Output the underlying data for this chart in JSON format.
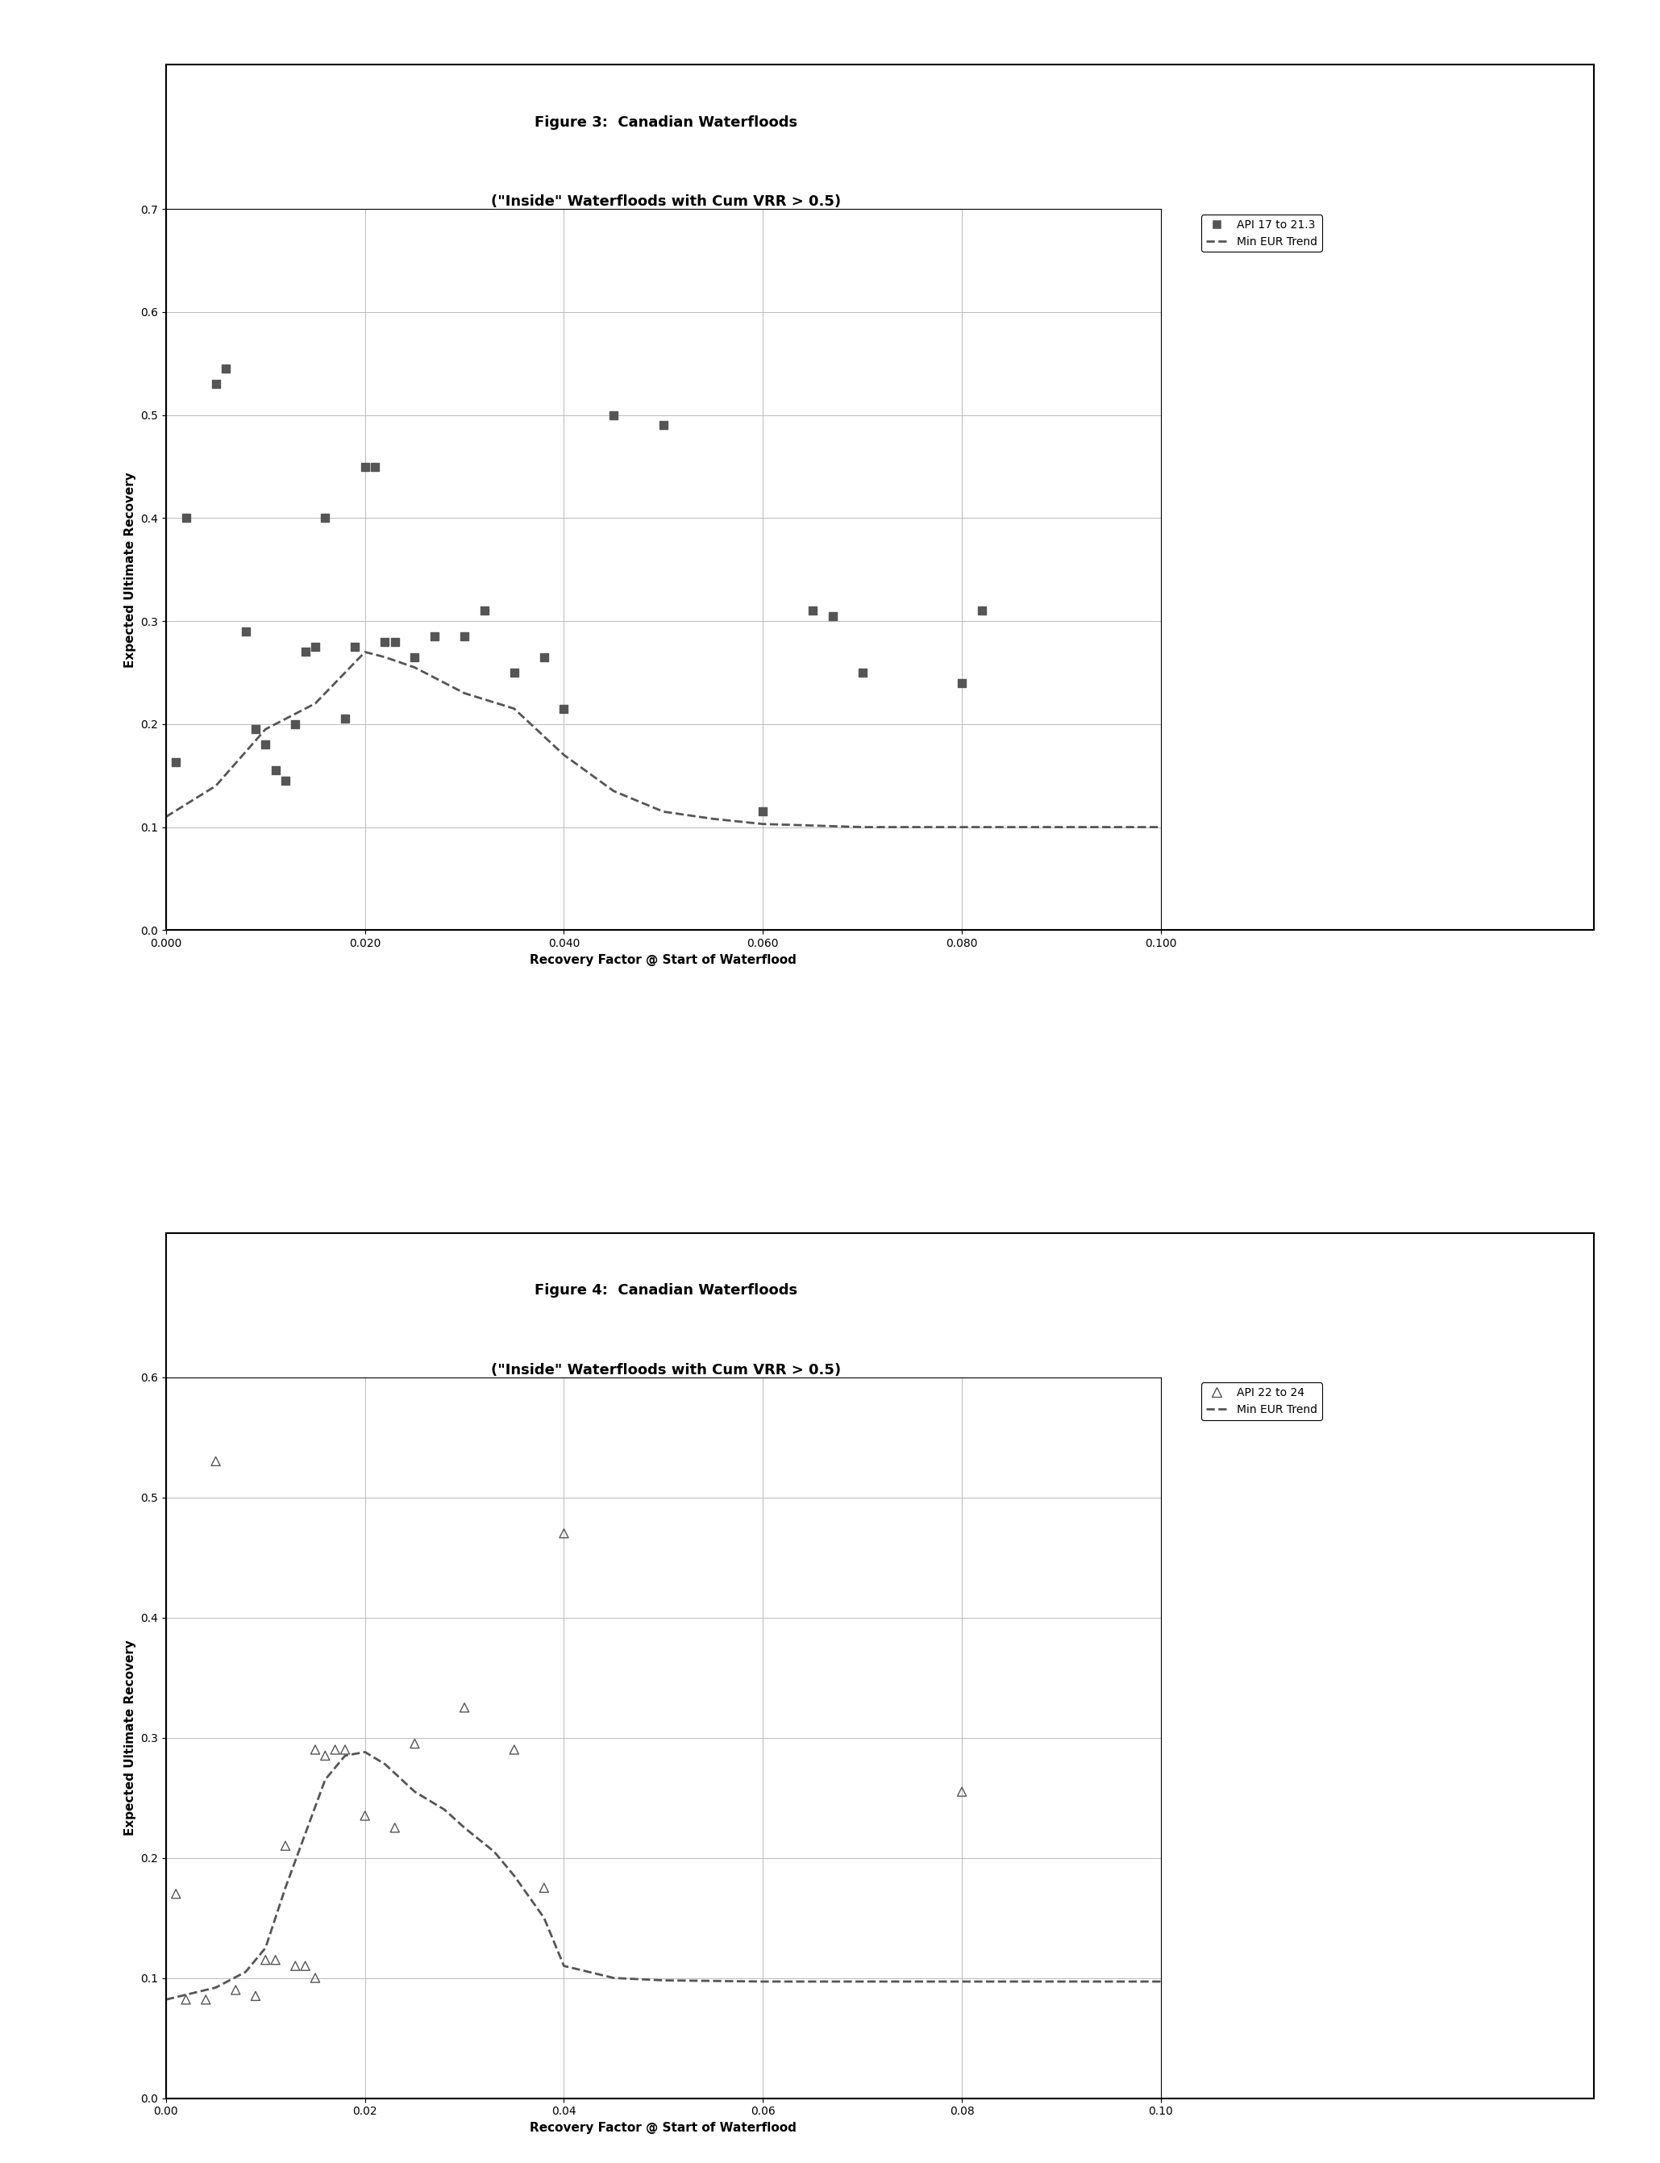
{
  "fig3": {
    "title_line1": "Figure 3:  Canadian Waterfloods",
    "title_line2": "(\"Inside\" Waterfloods with Cum VRR > 0.5)",
    "xlabel": "Recovery Factor @ Start of Waterflood",
    "ylabel": "Expected Ultimate Recovery",
    "xlim": [
      0.0,
      0.1
    ],
    "ylim": [
      0.0,
      0.7
    ],
    "xticks": [
      0.0,
      0.02,
      0.04,
      0.06,
      0.08,
      0.1
    ],
    "xtick_labels": [
      "0.000",
      "0.020",
      "0.040",
      "0.060",
      "0.080",
      "0.100"
    ],
    "yticks": [
      0.0,
      0.1,
      0.2,
      0.3,
      0.4,
      0.5,
      0.6,
      0.7
    ],
    "ytick_labels": [
      "0.0",
      "0.1",
      "0.2",
      "0.3",
      "0.4",
      "0.5",
      "0.6",
      "0.7"
    ],
    "scatter_x": [
      0.001,
      0.002,
      0.005,
      0.006,
      0.008,
      0.009,
      0.01,
      0.011,
      0.012,
      0.013,
      0.014,
      0.015,
      0.016,
      0.018,
      0.019,
      0.02,
      0.021,
      0.022,
      0.023,
      0.025,
      0.027,
      0.03,
      0.032,
      0.035,
      0.038,
      0.04,
      0.045,
      0.05,
      0.06,
      0.065,
      0.067,
      0.07,
      0.08,
      0.082
    ],
    "scatter_y": [
      0.163,
      0.4,
      0.53,
      0.545,
      0.29,
      0.195,
      0.18,
      0.155,
      0.145,
      0.2,
      0.27,
      0.275,
      0.4,
      0.205,
      0.275,
      0.45,
      0.45,
      0.28,
      0.28,
      0.265,
      0.285,
      0.285,
      0.31,
      0.25,
      0.265,
      0.215,
      0.5,
      0.49,
      0.115,
      0.31,
      0.305,
      0.25,
      0.24,
      0.31
    ],
    "trend_x": [
      0.0,
      0.005,
      0.01,
      0.015,
      0.018,
      0.02,
      0.022,
      0.025,
      0.03,
      0.035,
      0.04,
      0.045,
      0.05,
      0.055,
      0.06,
      0.07,
      0.08,
      0.09,
      0.1
    ],
    "trend_y": [
      0.11,
      0.14,
      0.195,
      0.22,
      0.25,
      0.27,
      0.265,
      0.255,
      0.23,
      0.215,
      0.17,
      0.135,
      0.115,
      0.108,
      0.103,
      0.1,
      0.1,
      0.1,
      0.1
    ],
    "legend_marker_label": "API 17 to 21.3",
    "legend_line_label": "Min EUR Trend",
    "marker": "s",
    "marker_color": "#555555",
    "marker_size": 7,
    "line_color": "#555555",
    "line_style": "--",
    "line_width": 2.0
  },
  "fig4": {
    "title_line1": "Figure 4:  Canadian Waterfloods",
    "title_line2": "(\"Inside\" Waterfloods with Cum VRR > 0.5)",
    "xlabel": "Recovery Factor @ Start of Waterflood",
    "ylabel": "Expected Ultimate Recovery",
    "xlim": [
      0.0,
      0.1
    ],
    "ylim": [
      0.0,
      0.6
    ],
    "xticks": [
      0.0,
      0.02,
      0.04,
      0.06,
      0.08,
      0.1
    ],
    "xtick_labels": [
      "0.00",
      "0.02",
      "0.04",
      "0.06",
      "0.08",
      "0.10"
    ],
    "yticks": [
      0.0,
      0.1,
      0.2,
      0.3,
      0.4,
      0.5,
      0.6
    ],
    "ytick_labels": [
      "0.0",
      "0.1",
      "0.2",
      "0.3",
      "0.4",
      "0.5",
      "0.6"
    ],
    "scatter_x": [
      0.001,
      0.002,
      0.004,
      0.005,
      0.007,
      0.009,
      0.01,
      0.011,
      0.012,
      0.013,
      0.014,
      0.015,
      0.015,
      0.016,
      0.017,
      0.018,
      0.02,
      0.023,
      0.025,
      0.03,
      0.035,
      0.038,
      0.04,
      0.08
    ],
    "scatter_y": [
      0.17,
      0.082,
      0.082,
      0.53,
      0.09,
      0.085,
      0.115,
      0.115,
      0.21,
      0.11,
      0.11,
      0.29,
      0.1,
      0.285,
      0.29,
      0.29,
      0.235,
      0.225,
      0.295,
      0.325,
      0.29,
      0.175,
      0.47,
      0.255
    ],
    "trend_x": [
      0.0,
      0.005,
      0.008,
      0.01,
      0.012,
      0.014,
      0.016,
      0.018,
      0.02,
      0.022,
      0.025,
      0.028,
      0.03,
      0.033,
      0.035,
      0.038,
      0.04,
      0.045,
      0.05,
      0.06,
      0.07,
      0.08,
      0.09,
      0.1
    ],
    "trend_y": [
      0.082,
      0.092,
      0.105,
      0.125,
      0.175,
      0.22,
      0.265,
      0.285,
      0.288,
      0.278,
      0.255,
      0.24,
      0.225,
      0.205,
      0.185,
      0.15,
      0.11,
      0.1,
      0.098,
      0.097,
      0.097,
      0.097,
      0.097,
      0.097
    ],
    "legend_marker_label": "API 22 to 24",
    "legend_line_label": "Min EUR Trend",
    "marker": "^",
    "marker_color": "#555555",
    "marker_size": 8,
    "line_color": "#555555",
    "line_style": "--",
    "line_width": 2.0
  },
  "background_color": "#ffffff",
  "panel_background": "#f5f5f5",
  "border_color": "#000000",
  "grid_color": "#bbbbbb",
  "text_color": "#000000",
  "font_family": "DejaVu Sans",
  "title_fontsize": 13,
  "label_fontsize": 11,
  "tick_fontsize": 10,
  "legend_fontsize": 10
}
